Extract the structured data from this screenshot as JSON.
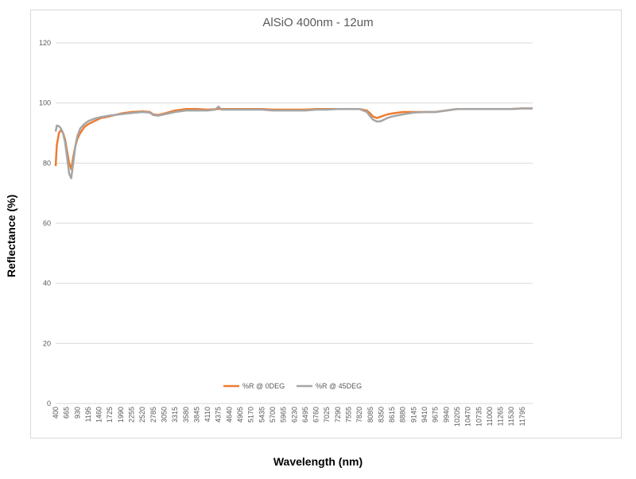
{
  "chart_data": {
    "type": "line",
    "title": "AlSiO 400nm - 12um",
    "xlabel": "Wavelength (nm)",
    "ylabel": "Reflectance (%)",
    "ylim": [
      0,
      120
    ],
    "y_ticks": [
      0,
      20,
      40,
      60,
      80,
      100,
      120
    ],
    "x_ticks": [
      400,
      665,
      930,
      1195,
      1460,
      1725,
      1990,
      2255,
      2520,
      2785,
      3050,
      3315,
      3580,
      3845,
      4110,
      4375,
      4640,
      4905,
      5170,
      5435,
      5700,
      5965,
      6230,
      6495,
      6760,
      7025,
      7290,
      7555,
      7820,
      8085,
      8350,
      8615,
      8880,
      9145,
      9410,
      9675,
      9940,
      10205,
      10470,
      10735,
      11000,
      11265,
      11530,
      11795
    ],
    "xlim": [
      400,
      12050
    ],
    "grid": "horizontal",
    "legend_position": "bottom",
    "colors": {
      "series0": "#ED7D31",
      "series1": "#A5A5A5",
      "grid": "#d9d9d9",
      "axis_text": "#595959"
    },
    "series": [
      {
        "name": "%R @ 0DEG",
        "x": [
          400,
          430,
          480,
          530,
          580,
          630,
          680,
          730,
          780,
          830,
          880,
          930,
          1000,
          1100,
          1200,
          1350,
          1500,
          1700,
          1990,
          2255,
          2520,
          2700,
          2785,
          2900,
          3050,
          3315,
          3580,
          3845,
          4110,
          4375,
          4640,
          4905,
          5170,
          5435,
          5700,
          5965,
          6230,
          6495,
          6760,
          7025,
          7290,
          7555,
          7820,
          8000,
          8085,
          8150,
          8250,
          8350,
          8500,
          8615,
          8880,
          9145,
          9410,
          9675,
          9940,
          10205,
          10470,
          10735,
          11000,
          11265,
          11530,
          11795,
          12050
        ],
        "y": [
          79,
          86,
          90,
          91,
          90,
          88,
          84,
          80,
          78,
          82,
          85.5,
          88,
          90,
          92,
          93,
          94,
          95,
          95.5,
          96.5,
          97,
          97.2,
          97,
          96.2,
          96,
          96.5,
          97.5,
          98,
          98,
          97.8,
          98,
          98,
          98,
          98,
          98,
          97.8,
          97.8,
          97.8,
          97.8,
          98,
          98,
          98,
          98,
          98,
          97.5,
          96.5,
          95.5,
          95,
          95.5,
          96.2,
          96.5,
          97,
          97,
          97,
          97,
          97.5,
          98,
          98,
          98,
          98,
          98,
          98,
          98.2,
          98.2
        ]
      },
      {
        "name": "%R @ 45DEG",
        "x": [
          400,
          430,
          480,
          530,
          580,
          630,
          680,
          730,
          780,
          830,
          880,
          930,
          1000,
          1100,
          1200,
          1350,
          1500,
          1700,
          1990,
          2255,
          2520,
          2700,
          2785,
          2900,
          3050,
          3315,
          3580,
          3845,
          4110,
          4300,
          4375,
          4450,
          4640,
          4905,
          5170,
          5435,
          5700,
          5965,
          6230,
          6495,
          6760,
          7025,
          7290,
          7555,
          7820,
          8000,
          8085,
          8150,
          8250,
          8350,
          8500,
          8615,
          8880,
          9145,
          9410,
          9675,
          9940,
          10205,
          10470,
          10735,
          11000,
          11265,
          11530,
          11795,
          12050
        ],
        "y": [
          90.5,
          92.5,
          92.3,
          91.5,
          90,
          87,
          82,
          76.5,
          75,
          80,
          85.5,
          89,
          91.5,
          93,
          94,
          94.8,
          95.3,
          95.8,
          96.3,
          96.7,
          97,
          96.8,
          96,
          95.8,
          96.2,
          97,
          97.5,
          97.5,
          97.5,
          97.8,
          98.8,
          97.8,
          97.8,
          97.8,
          97.8,
          97.8,
          97.5,
          97.5,
          97.5,
          97.5,
          97.8,
          97.8,
          98,
          98,
          98,
          97,
          95.5,
          94.5,
          93.8,
          94,
          95,
          95.5,
          96.2,
          96.8,
          97,
          97,
          97.5,
          98,
          98,
          98,
          98,
          98,
          98,
          98.2,
          98.2
        ]
      }
    ]
  }
}
